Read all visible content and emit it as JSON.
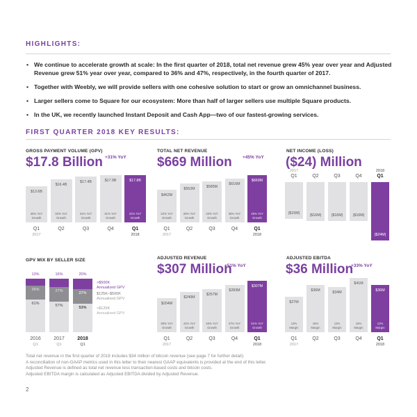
{
  "highlights": {
    "heading": "HIGHLIGHTS:",
    "bullets": [
      "We continue to accelerate growth at scale: In the first quarter of 2018, total net revenue grew 45% year over year and Adjusted Revenue grew 51% year over year, compared to 36% and 47%, respectively, in the fourth quarter of 2017.",
      "Together with Weebly, we will provide sellers with one cohesive solution to start or grow an omnichannel business.",
      "Larger sellers come to Square for our ecosystem: More than half of larger sellers use multiple Square products.",
      "In the UK, we recently launched Instant Deposit and Cash App—two of our fastest-growing services."
    ]
  },
  "key_results": {
    "heading": "FIRST QUARTER 2018 KEY RESULTS:"
  },
  "colors": {
    "accent": "#7f3fa1",
    "bar": "#e1e1e3",
    "mid_segment": "#8e8e93",
    "rule": "#d5d5d8"
  },
  "chart_data": [
    {
      "id": "gpv",
      "type": "bar",
      "title": "GROSS PAYMENT VOLUME (GPV)",
      "headline": "$17.8 Billion",
      "yoy": "+31% YoY",
      "categories": [
        "Q1",
        "Q2",
        "Q3",
        "Q4",
        "Q1"
      ],
      "years": [
        "2017",
        "",
        "",
        "",
        "2018"
      ],
      "values": [
        13.6,
        16.4,
        17.4,
        17.9,
        17.8
      ],
      "unit": "B",
      "labels": [
        "$13.6B",
        "$16.4B",
        "$17.4B",
        "$17.9B",
        "$17.8B"
      ],
      "notes": [
        [
          "35% YoY",
          "Growth"
        ],
        [
          "32% YoY",
          "Growth"
        ],
        [
          "31% YoY",
          "Growth"
        ],
        [
          "31% YoY",
          "Growth"
        ],
        [
          "31% YoY",
          "Growth"
        ]
      ],
      "highlight_index": 4
    },
    {
      "id": "net_revenue",
      "type": "bar",
      "title": "TOTAL NET REVENUE",
      "headline": "$669 Million",
      "yoy": "+45% YoY",
      "categories": [
        "Q1",
        "Q2",
        "Q3",
        "Q4",
        "Q1"
      ],
      "years": [
        "2017",
        "",
        "",
        "",
        "2018"
      ],
      "values": [
        462,
        552,
        585,
        616,
        669
      ],
      "unit": "M",
      "labels": [
        "$462M",
        "$552M",
        "$585M",
        "$616M",
        "$669M"
      ],
      "notes": [
        [
          "22% YoY",
          "Growth"
        ],
        [
          "26% YoY",
          "Growth"
        ],
        [
          "33% YoY",
          "Growth"
        ],
        [
          "36% YoY",
          "Growth"
        ],
        [
          "45% YoY",
          "Growth"
        ]
      ],
      "highlight_index": 4
    },
    {
      "id": "net_income",
      "type": "bar",
      "title": "NET INCOME (LOSS)",
      "headline": "($24) Million",
      "yoy": "",
      "categories": [
        "Q1",
        "Q2",
        "Q3",
        "Q4",
        "Q1"
      ],
      "years": [
        "2017",
        "",
        "",
        "",
        "2018"
      ],
      "values": [
        -15,
        -16,
        -16,
        -16,
        -24
      ],
      "unit": "M",
      "labels": [
        "($15M)",
        "($16M)",
        "($16M)",
        "($16M)",
        "($24M)"
      ],
      "highlight_index": 4
    },
    {
      "id": "gpv_mix",
      "type": "bar",
      "stacked": true,
      "title": "GPV MIX BY SELLER SIZE",
      "categories": [
        "2016",
        "2017",
        "2018"
      ],
      "sublabels": [
        "Q1",
        "Q1",
        "Q1"
      ],
      "series": [
        {
          "name": ">$500K Annualized GPV",
          "legend": [
            ">$500K",
            "Annualized GPV"
          ],
          "values": [
            13,
            16,
            20
          ]
        },
        {
          "name": "$125K–$500K Annualized GPV",
          "legend": [
            "$125K–$500K",
            "Annualized GPV"
          ],
          "values": [
            26,
            27,
            27
          ]
        },
        {
          "name": "<$125K Annualized GPV",
          "legend": [
            "<$125K",
            "Annualized GPV"
          ],
          "values": [
            61,
            57,
            53
          ]
        }
      ],
      "unit": "%",
      "highlight_index": 2
    },
    {
      "id": "adjusted_revenue",
      "type": "bar",
      "title": "ADJUSTED REVENUE",
      "headline": "$307 Million",
      "yoy": "+51% YoY",
      "categories": [
        "Q1",
        "Q2",
        "Q3",
        "Q4",
        "Q1"
      ],
      "years": [
        "2017",
        "",
        "",
        "",
        "2018"
      ],
      "values": [
        204,
        240,
        257,
        283,
        307
      ],
      "unit": "M",
      "labels": [
        "$204M",
        "$240M",
        "$257M",
        "$283M",
        "$307M"
      ],
      "notes": [
        [
          "39% YoY",
          "Growth"
        ],
        [
          "41% YoY",
          "Growth"
        ],
        [
          "45% YoY",
          "Growth"
        ],
        [
          "47% YoY",
          "Growth"
        ],
        [
          "51% YoY",
          "Growth"
        ]
      ],
      "highlight_index": 4
    },
    {
      "id": "adjusted_ebitda",
      "type": "bar",
      "title": "ADJUSTED EBITDA",
      "headline": "$36 Million",
      "yoy": "+33% YoY",
      "categories": [
        "Q1",
        "Q2",
        "Q3",
        "Q4",
        "Q1"
      ],
      "years": [
        "2017",
        "",
        "",
        "",
        "2018"
      ],
      "values": [
        27,
        36,
        34,
        41,
        36
      ],
      "unit": "M",
      "labels": [
        "$27M",
        "$36M",
        "$34M",
        "$41M",
        "$36M"
      ],
      "notes": [
        [
          "13%",
          "Margin"
        ],
        [
          "15%",
          "Margin"
        ],
        [
          "13%",
          "Margin"
        ],
        [
          "15%",
          "Margin"
        ],
        [
          "12%",
          "Margin"
        ]
      ],
      "highlight_index": 4
    }
  ],
  "footer": {
    "notes": [
      "Total net revenue in the first quarter of 2018 includes $34 million of bitcoin revenue (see page 7 for further detail).",
      "A reconciliation of non-GAAP metrics used in this letter to their nearest GAAP equivalents is provided at the end of this letter.",
      "Adjusted Revenue is defined as total net revenue less transaction-based costs and bitcoin costs.",
      "Adjusted EBITDA margin is calculated as Adjusted EBITDA divided by Adjusted Revenue."
    ],
    "page_number": "2"
  }
}
